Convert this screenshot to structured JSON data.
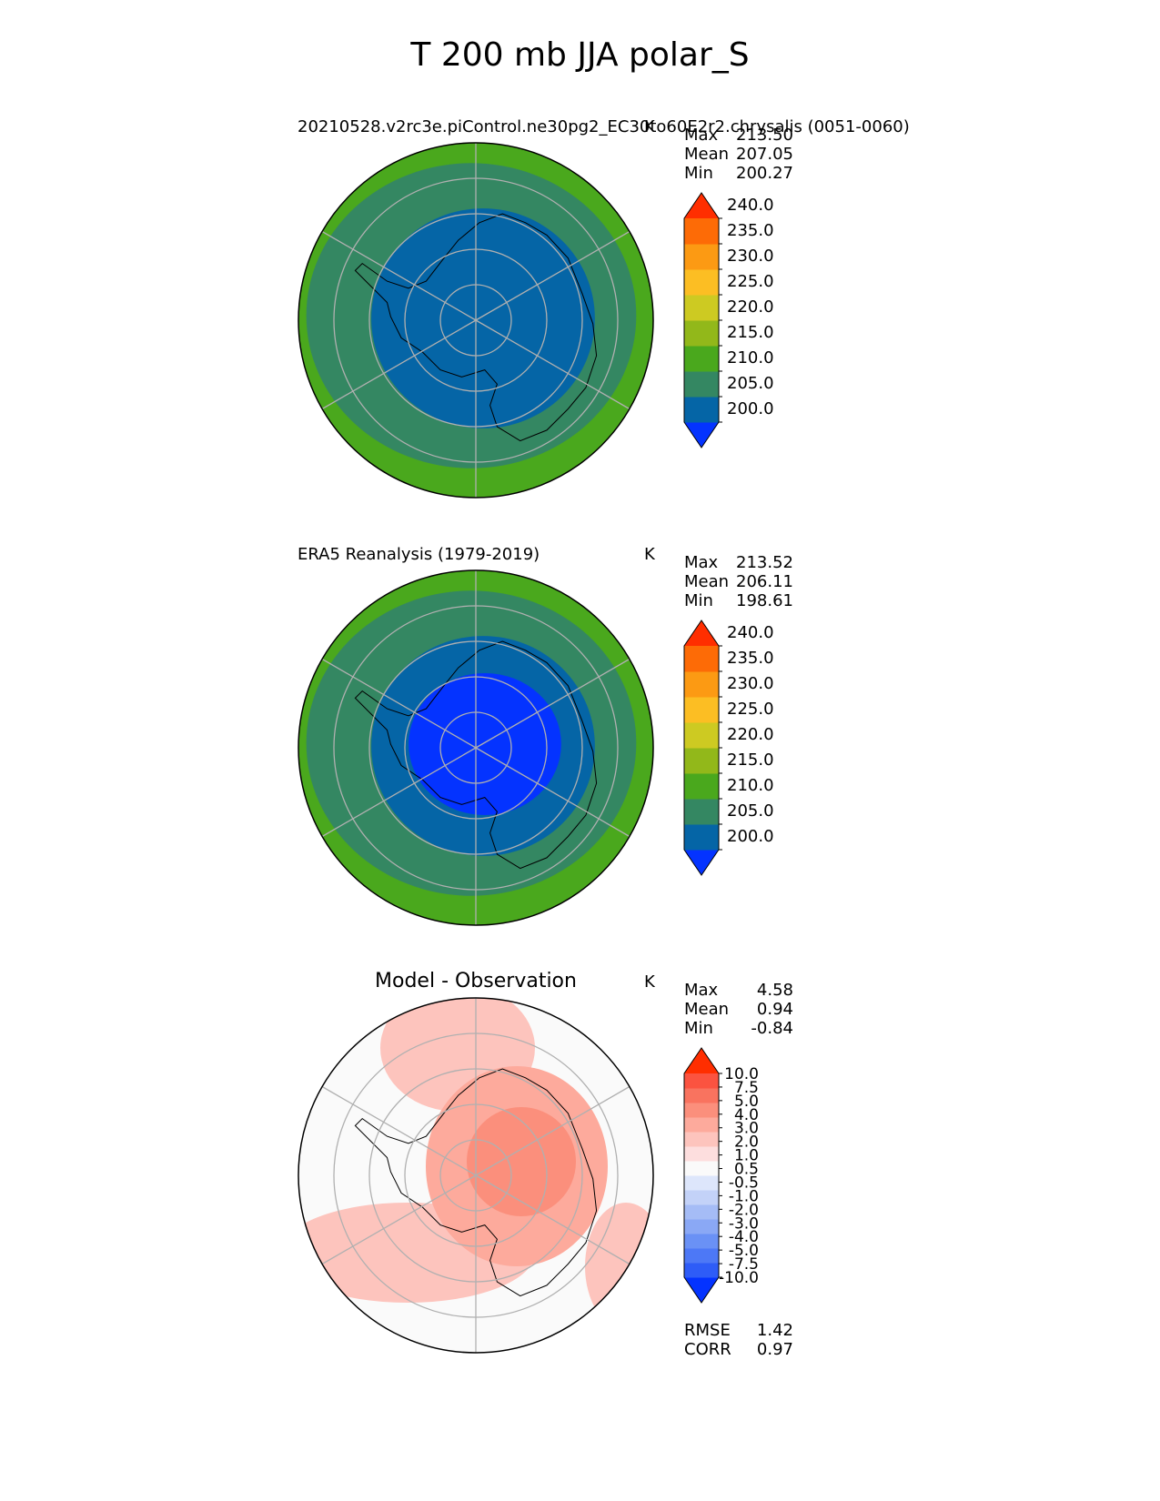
{
  "figure": {
    "title": "T 200 mb JJA polar_S"
  },
  "chart_data": [
    {
      "type": "heatmap",
      "projection": "south-polar-stereographic",
      "title": "20210528.v2rc3e.piControl.ne30pg2_EC30to60E2r2.chrysalis (0051-0060)",
      "units": "K",
      "stats": {
        "Max": "213.50",
        "Mean": "207.05",
        "Min": "200.27"
      },
      "colorbar": {
        "ticks": [
          "240.0",
          "235.0",
          "230.0",
          "225.0",
          "220.0",
          "215.0",
          "210.0",
          "205.0",
          "200.0"
        ],
        "levels": [
          195,
          200,
          205,
          210,
          215,
          220,
          225,
          230,
          235,
          240,
          245
        ],
        "colors": [
          "#0433ff",
          "#0565a6",
          "#348762",
          "#4aa81d",
          "#92b81a",
          "#cdca22",
          "#fcbe23",
          "#fc9a13",
          "#fd6b06",
          "#ff2e00"
        ],
        "extend": "both"
      },
      "field": {
        "outer_band_K": 212.5,
        "middle_band_K": 207.5,
        "inner_core_K": 202.5
      }
    },
    {
      "type": "heatmap",
      "projection": "south-polar-stereographic",
      "title": "ERA5 Reanalysis (1979-2019)",
      "units": "K",
      "stats": {
        "Max": "213.52",
        "Mean": "206.11",
        "Min": "198.61"
      },
      "colorbar": {
        "ticks": [
          "240.0",
          "235.0",
          "230.0",
          "225.0",
          "220.0",
          "215.0",
          "210.0",
          "205.0",
          "200.0"
        ],
        "levels": [
          195,
          200,
          205,
          210,
          215,
          220,
          225,
          230,
          235,
          240,
          245
        ],
        "colors": [
          "#0433ff",
          "#0565a6",
          "#348762",
          "#4aa81d",
          "#92b81a",
          "#cdca22",
          "#fcbe23",
          "#fc9a13",
          "#fd6b06",
          "#ff2e00"
        ],
        "extend": "both"
      },
      "field": {
        "outer_band_K": 212.5,
        "middle_band_K": 207.5,
        "inner_core_K": 202.5,
        "polar_cold_K": 198.6
      }
    },
    {
      "type": "heatmap",
      "projection": "south-polar-stereographic",
      "title": "Model - Observation",
      "units": "K",
      "stats": {
        "Max": "4.58",
        "Mean": "0.94",
        "Min": "-0.84"
      },
      "metrics": {
        "RMSE": "1.42",
        "CORR": "0.97"
      },
      "colorbar": {
        "ticks": [
          "10.0",
          "7.5",
          "5.0",
          "4.0",
          "3.0",
          "2.0",
          "1.0",
          "0.5",
          "-0.5",
          "-1.0",
          "-2.0",
          "-3.0",
          "-4.0",
          "-5.0",
          "-7.5",
          "-10.0"
        ],
        "colors": [
          "#0433ff",
          "#2e5cf7",
          "#4d78f6",
          "#6a91f5",
          "#8aa8f5",
          "#a5bcf6",
          "#c3d2f8",
          "#dde6fb",
          "#fafafa",
          "#fddede",
          "#fdc4bd",
          "#fdaa9c",
          "#fb8f7c",
          "#f9735f",
          "#fb5340",
          "#ff2e00"
        ],
        "extend": "both"
      },
      "field": {
        "background_K": 0.0,
        "pacific_sector_K": 1.0,
        "east_antarctica_K": 2.0,
        "core_K": 3.5
      }
    }
  ]
}
